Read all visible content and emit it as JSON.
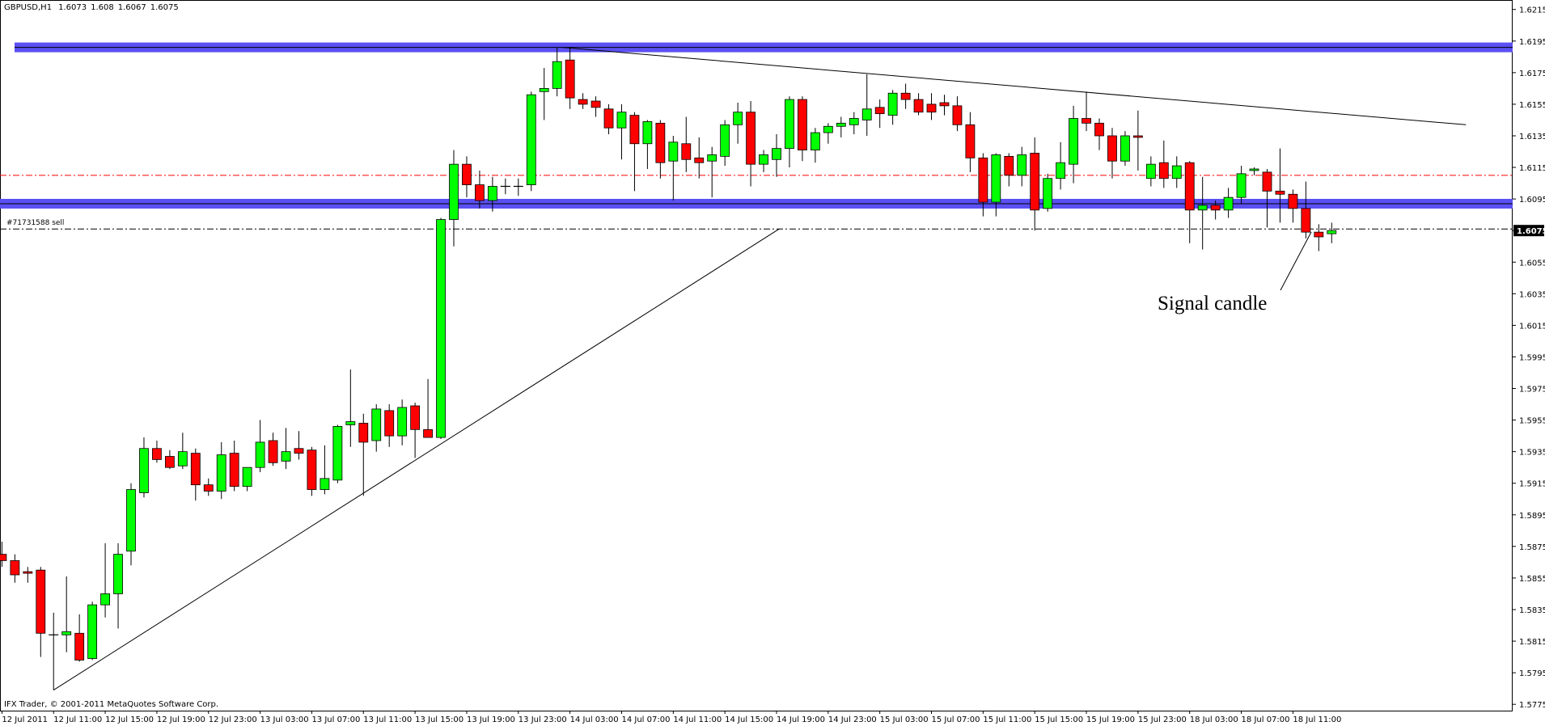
{
  "chart_data": {
    "type": "candlestick",
    "title": "GBPUSD,H1",
    "categories": [
      "12 Jul 2011",
      null,
      null,
      null,
      "12 Jul 11:00",
      null,
      null,
      null,
      "12 Jul 15:00",
      null,
      null,
      null,
      "12 Jul 19:00",
      null,
      null,
      null,
      "12 Jul 23:00",
      null,
      null,
      null,
      "13 Jul 03:00",
      null,
      null,
      null,
      "13 Jul 07:00",
      null,
      null,
      null,
      "13 Jul 11:00",
      null,
      null,
      null,
      "13 Jul 15:00",
      null,
      null,
      null,
      "13 Jul 19:00",
      null,
      null,
      null,
      "13 Jul 23:00",
      null,
      null,
      null,
      "14 Jul 03:00",
      null,
      null,
      null,
      "14 Jul 07:00",
      null,
      null,
      null,
      "14 Jul 11:00",
      null,
      null,
      null,
      "14 Jul 15:00",
      null,
      null,
      null,
      "14 Jul 19:00",
      null,
      null,
      null,
      "14 Jul 23:00",
      null,
      null,
      null,
      "15 Jul 03:00",
      null,
      null,
      null,
      "15 Jul 07:00",
      null,
      null,
      null,
      "15 Jul 11:00",
      null,
      null,
      null,
      "15 Jul 15:00",
      null,
      null,
      null,
      "15 Jul 19:00",
      null,
      null,
      null,
      "15 Jul 23:00",
      null,
      null,
      null,
      "18 Jul 03:00",
      null,
      null,
      null,
      "18 Jul 07:00",
      null,
      null,
      null,
      "18 Jul 11:00",
      null,
      null,
      null
    ],
    "open": [
      1.587,
      1.5866,
      1.5859,
      1.586,
      1.5819,
      1.5819,
      1.582,
      1.5804,
      1.5838,
      1.5845,
      1.5872,
      1.5909,
      1.5937,
      1.5932,
      1.5926,
      1.5934,
      1.5914,
      1.591,
      1.5934,
      1.5913,
      1.5925,
      1.5942,
      1.5929,
      1.5937,
      1.5936,
      1.5911,
      1.5917,
      1.5952,
      1.5953,
      1.5942,
      1.5961,
      1.5945,
      1.5964,
      1.5949,
      1.5944,
      1.6082,
      1.6117,
      1.6104,
      1.6094,
      1.6103,
      1.6103,
      1.6104,
      1.6163,
      1.6165,
      1.6183,
      1.6158,
      1.6157,
      1.6152,
      1.614,
      1.6148,
      1.613,
      1.6143,
      1.6119,
      1.613,
      1.6121,
      1.6119,
      1.6122,
      1.6142,
      1.615,
      1.6117,
      1.612,
      1.6127,
      1.6158,
      1.6126,
      1.6137,
      1.6141,
      1.6142,
      1.6145,
      1.6153,
      1.6148,
      1.6162,
      1.6158,
      1.6155,
      1.6156,
      1.6154,
      1.6142,
      1.6121,
      1.6093,
      1.6122,
      1.611,
      1.6124,
      1.6089,
      1.6108,
      1.6117,
      1.6146,
      1.6143,
      1.6135,
      1.6119,
      1.6135,
      1.6108,
      1.6118,
      1.6108,
      1.6118,
      1.6088,
      1.6091,
      1.6088,
      1.6096,
      1.6113,
      1.6112,
      1.61,
      1.6098,
      1.6089,
      1.6074,
      1.6073
    ],
    "high": [
      1.5878,
      1.587,
      1.5862,
      1.5862,
      1.5833,
      1.5856,
      1.5832,
      1.584,
      1.5877,
      1.5877,
      1.5915,
      1.5944,
      1.5942,
      1.5936,
      1.5947,
      1.5937,
      1.5918,
      1.5941,
      1.5942,
      1.5925,
      1.5955,
      1.5947,
      1.595,
      1.5948,
      1.5938,
      1.5939,
      1.5952,
      1.5987,
      1.5959,
      1.5965,
      1.5965,
      1.5968,
      1.5966,
      1.5981,
      1.6083,
      1.6126,
      1.6122,
      1.6113,
      1.6109,
      1.6108,
      1.6108,
      1.6163,
      1.6178,
      1.6191,
      1.6191,
      1.6162,
      1.616,
      1.6155,
      1.6155,
      1.615,
      1.6145,
      1.6145,
      1.6135,
      1.6147,
      1.6134,
      1.6128,
      1.6145,
      1.6156,
      1.6157,
      1.6126,
      1.6136,
      1.616,
      1.616,
      1.614,
      1.6143,
      1.6147,
      1.615,
      1.6174,
      1.6158,
      1.6164,
      1.6168,
      1.6162,
      1.6162,
      1.6161,
      1.616,
      1.615,
      1.6124,
      1.6124,
      1.6124,
      1.6128,
      1.6134,
      1.6111,
      1.6131,
      1.6154,
      1.6163,
      1.6146,
      1.614,
      1.6138,
      1.6151,
      1.6122,
      1.6132,
      1.6122,
      1.6119,
      1.6109,
      1.6094,
      1.6102,
      1.6116,
      1.6115,
      1.6114,
      1.6127,
      1.6101,
      1.6106,
      1.6079,
      1.608
    ],
    "low": [
      1.5862,
      1.5852,
      1.5852,
      1.5805,
      1.5784,
      1.5808,
      1.5802,
      1.5803,
      1.583,
      1.5823,
      1.5863,
      1.5906,
      1.5928,
      1.5924,
      1.5924,
      1.5904,
      1.5907,
      1.5905,
      1.591,
      1.591,
      1.5922,
      1.5926,
      1.5924,
      1.593,
      1.5907,
      1.5908,
      1.5915,
      1.5938,
      1.5907,
      1.5935,
      1.5938,
      1.5939,
      1.5931,
      1.5944,
      1.5943,
      1.6065,
      1.6096,
      1.6089,
      1.6087,
      1.6098,
      1.6097,
      1.61,
      1.6145,
      1.616,
      1.6152,
      1.6152,
      1.6147,
      1.6136,
      1.612,
      1.61,
      1.6114,
      1.6108,
      1.6094,
      1.6112,
      1.6108,
      1.6096,
      1.6116,
      1.613,
      1.6103,
      1.6112,
      1.6109,
      1.6115,
      1.6119,
      1.6118,
      1.613,
      1.6134,
      1.6136,
      1.6135,
      1.614,
      1.6142,
      1.6152,
      1.6148,
      1.6145,
      1.6148,
      1.6138,
      1.6112,
      1.6084,
      1.6084,
      1.6103,
      1.6103,
      1.6075,
      1.6087,
      1.6101,
      1.6105,
      1.6138,
      1.6126,
      1.6108,
      1.6116,
      1.6113,
      1.6103,
      1.6102,
      1.6102,
      1.6067,
      1.6063,
      1.6082,
      1.6083,
      1.6092,
      1.611,
      1.6077,
      1.608,
      1.608,
      1.607,
      1.6062,
      1.6067
    ],
    "close": [
      1.5866,
      1.5857,
      1.5858,
      1.582,
      1.5819,
      1.5821,
      1.5803,
      1.5838,
      1.5845,
      1.587,
      1.5911,
      1.5937,
      1.593,
      1.5925,
      1.5935,
      1.5914,
      1.591,
      1.5933,
      1.5913,
      1.5925,
      1.5941,
      1.5928,
      1.5935,
      1.5934,
      1.5911,
      1.5918,
      1.5951,
      1.5954,
      1.5941,
      1.5962,
      1.5945,
      1.5963,
      1.5949,
      1.5944,
      1.6082,
      1.6117,
      1.6104,
      1.6094,
      1.6103,
      1.6103,
      1.6103,
      1.6161,
      1.6165,
      1.6182,
      1.6159,
      1.6155,
      1.6153,
      1.614,
      1.615,
      1.613,
      1.6144,
      1.6118,
      1.6131,
      1.612,
      1.6118,
      1.6123,
      1.6142,
      1.615,
      1.6117,
      1.6123,
      1.6127,
      1.6158,
      1.6126,
      1.6137,
      1.6141,
      1.6143,
      1.6146,
      1.6152,
      1.6149,
      1.6162,
      1.6158,
      1.615,
      1.615,
      1.6154,
      1.6142,
      1.6121,
      1.6093,
      1.6123,
      1.611,
      1.6123,
      1.6088,
      1.6108,
      1.6118,
      1.6146,
      1.6143,
      1.6135,
      1.6119,
      1.6135,
      1.6134,
      1.6117,
      1.6108,
      1.6116,
      1.6088,
      1.6091,
      1.6088,
      1.6096,
      1.6111,
      1.6114,
      1.61,
      1.6098,
      1.6089,
      1.6074,
      1.6071,
      1.6075
    ],
    "up_color": "#00ff00",
    "down_color": "#ff0000",
    "ylim": [
      1.5771,
      1.6221
    ],
    "yticks": [
      1.6215,
      1.6195,
      1.6175,
      1.6155,
      1.6135,
      1.6115,
      1.6095,
      1.6075,
      1.6055,
      1.6035,
      1.6015,
      1.5995,
      1.5975,
      1.5955,
      1.5935,
      1.5915,
      1.5895,
      1.5875,
      1.5855,
      1.5835,
      1.5815,
      1.5795,
      1.5775
    ],
    "grid": false,
    "levels": [
      {
        "value": 1.6191,
        "color": "#5b50f2",
        "style": "band"
      },
      {
        "value": 1.6092,
        "color": "#5b50f2",
        "style": "band"
      },
      {
        "value": 1.611,
        "color": "#ff0000",
        "style": "dashdot"
      }
    ],
    "order": {
      "label": "#71731588 sell",
      "value": 1.6076
    },
    "trendlines": [
      {
        "x": [
          4,
          60.2
        ],
        "y": [
          1.5784,
          1.6076
        ]
      },
      {
        "x": [
          43.4,
          113.4
        ],
        "y": [
          1.6191,
          1.6142
        ]
      }
    ],
    "annotation": "Signal candle",
    "footer": "IFX Trader, © 2001-2011 MetaQuotes Software Corp."
  }
}
